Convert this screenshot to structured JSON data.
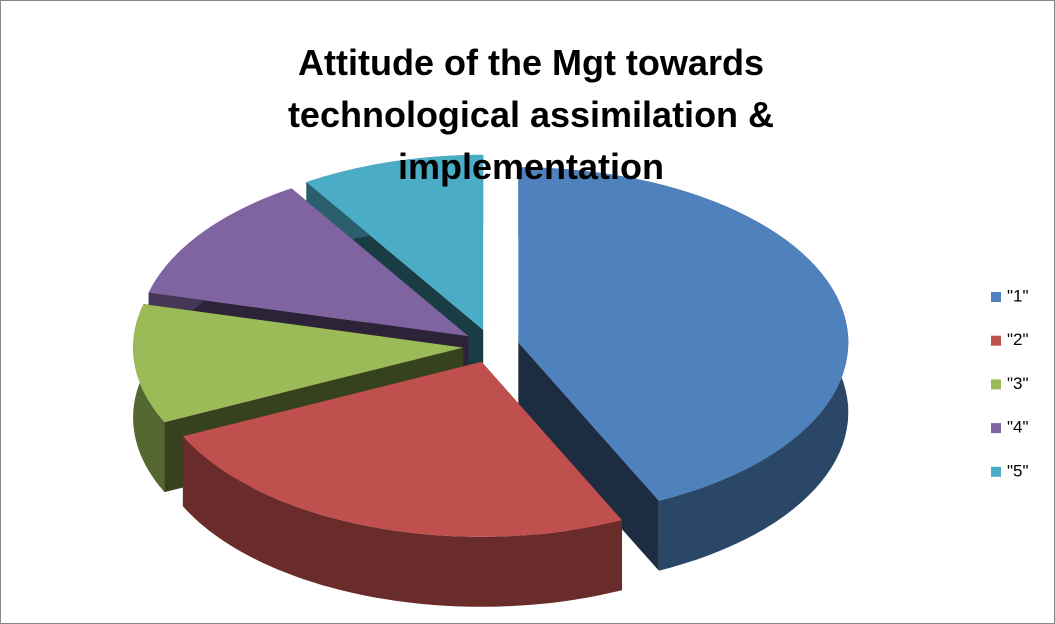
{
  "chart_data": {
    "type": "pie3d",
    "title": "Attitude of the Mgt towards technological assimilation & implementation",
    "categories": [
      "\"1\"",
      "\"2\"",
      "\"3\"",
      "\"4\"",
      "\"5\""
    ],
    "values": [
      43,
      25,
      11,
      12,
      9
    ],
    "colors": [
      "#4f81bd",
      "#c0504d",
      "#9bbb59",
      "#8064a2",
      "#4bacc6"
    ],
    "legend": "right"
  }
}
